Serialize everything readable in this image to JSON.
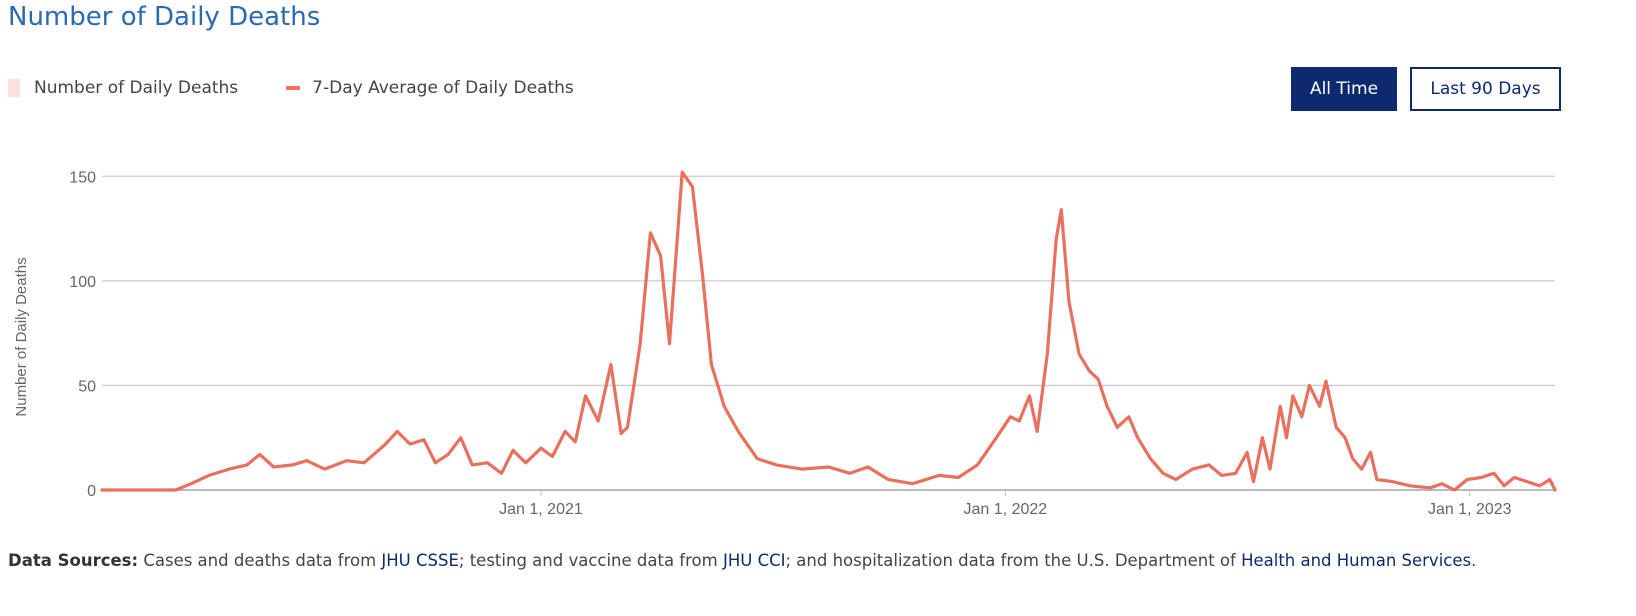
{
  "header": {
    "title": "Number of Daily Deaths"
  },
  "legend": {
    "daily_label": "Number of Daily Deaths",
    "average_label": "7-Day Average of Daily Deaths"
  },
  "buttons": {
    "all_time": "All Time",
    "last_90": "Last 90 Days"
  },
  "footer": {
    "label": "Data Sources:",
    "text1": " Cases and deaths data from ",
    "link1": "JHU CSSE",
    "text2": "; testing and vaccine data from ",
    "link2": "JHU CCI",
    "text3": "; and hospitalization data from the U.S. Department of ",
    "link3": "Health and Human Services",
    "text4": "."
  },
  "colors": {
    "bar": "#fbe0de",
    "line": "#e8705d",
    "accent": "#0d2a6e",
    "title": "#2a6ab5"
  },
  "chart_data": {
    "type": "line",
    "title": "Number of Daily Deaths",
    "ylabel": "Number of Daily Deaths",
    "xlabel": "",
    "x_range": [
      "2020-01-22",
      "2023-03-09"
    ],
    "ylim": [
      0,
      175
    ],
    "yticks": [
      0,
      50,
      100,
      150
    ],
    "xticks": [
      {
        "date": "2021-01-01",
        "label": "Jan 1, 2021"
      },
      {
        "date": "2022-01-01",
        "label": "Jan 1, 2022"
      },
      {
        "date": "2023-01-01",
        "label": "Jan 1, 2023"
      }
    ],
    "series": [
      {
        "name": "7-Day Average of Daily Deaths",
        "style": "line",
        "points": [
          [
            "2020-01-22",
            0
          ],
          [
            "2020-03-20",
            0
          ],
          [
            "2020-04-01",
            3
          ],
          [
            "2020-04-15",
            7
          ],
          [
            "2020-05-01",
            10
          ],
          [
            "2020-05-15",
            12
          ],
          [
            "2020-05-25",
            17
          ],
          [
            "2020-06-05",
            11
          ],
          [
            "2020-06-20",
            12
          ],
          [
            "2020-07-01",
            14
          ],
          [
            "2020-07-15",
            10
          ],
          [
            "2020-08-01",
            14
          ],
          [
            "2020-08-15",
            13
          ],
          [
            "2020-09-01",
            22
          ],
          [
            "2020-09-10",
            28
          ],
          [
            "2020-09-20",
            22
          ],
          [
            "2020-10-01",
            24
          ],
          [
            "2020-10-10",
            13
          ],
          [
            "2020-10-20",
            17
          ],
          [
            "2020-10-30",
            25
          ],
          [
            "2020-11-08",
            12
          ],
          [
            "2020-11-20",
            13
          ],
          [
            "2020-12-01",
            8
          ],
          [
            "2020-12-10",
            19
          ],
          [
            "2020-12-20",
            13
          ],
          [
            "2021-01-01",
            20
          ],
          [
            "2021-01-10",
            16
          ],
          [
            "2021-01-20",
            28
          ],
          [
            "2021-01-28",
            23
          ],
          [
            "2021-02-05",
            45
          ],
          [
            "2021-02-15",
            33
          ],
          [
            "2021-02-25",
            60
          ],
          [
            "2021-03-05",
            27
          ],
          [
            "2021-03-10",
            30
          ],
          [
            "2021-03-20",
            70
          ],
          [
            "2021-03-28",
            123
          ],
          [
            "2021-04-05",
            112
          ],
          [
            "2021-04-12",
            70
          ],
          [
            "2021-04-22",
            152
          ],
          [
            "2021-04-30",
            145
          ],
          [
            "2021-05-08",
            103
          ],
          [
            "2021-05-15",
            60
          ],
          [
            "2021-05-25",
            40
          ],
          [
            "2021-06-05",
            28
          ],
          [
            "2021-06-20",
            15
          ],
          [
            "2021-07-05",
            12
          ],
          [
            "2021-07-25",
            10
          ],
          [
            "2021-08-15",
            11
          ],
          [
            "2021-09-01",
            8
          ],
          [
            "2021-09-15",
            11
          ],
          [
            "2021-10-01",
            5
          ],
          [
            "2021-10-20",
            3
          ],
          [
            "2021-11-10",
            7
          ],
          [
            "2021-11-25",
            6
          ],
          [
            "2021-12-10",
            12
          ],
          [
            "2021-12-25",
            25
          ],
          [
            "2022-01-05",
            35
          ],
          [
            "2022-01-12",
            33
          ],
          [
            "2022-01-20",
            45
          ],
          [
            "2022-01-26",
            28
          ],
          [
            "2022-02-03",
            65
          ],
          [
            "2022-02-10",
            120
          ],
          [
            "2022-02-14",
            134
          ],
          [
            "2022-02-20",
            90
          ],
          [
            "2022-02-28",
            65
          ],
          [
            "2022-03-08",
            57
          ],
          [
            "2022-03-15",
            53
          ],
          [
            "2022-03-22",
            40
          ],
          [
            "2022-03-30",
            30
          ],
          [
            "2022-04-08",
            35
          ],
          [
            "2022-04-15",
            25
          ],
          [
            "2022-04-25",
            15
          ],
          [
            "2022-05-05",
            8
          ],
          [
            "2022-05-15",
            5
          ],
          [
            "2022-05-28",
            10
          ],
          [
            "2022-06-10",
            12
          ],
          [
            "2022-06-20",
            7
          ],
          [
            "2022-07-01",
            8
          ],
          [
            "2022-07-10",
            18
          ],
          [
            "2022-07-15",
            4
          ],
          [
            "2022-07-22",
            25
          ],
          [
            "2022-07-28",
            10
          ],
          [
            "2022-08-05",
            40
          ],
          [
            "2022-08-10",
            25
          ],
          [
            "2022-08-15",
            45
          ],
          [
            "2022-08-22",
            35
          ],
          [
            "2022-08-28",
            50
          ],
          [
            "2022-09-05",
            40
          ],
          [
            "2022-09-10",
            52
          ],
          [
            "2022-09-18",
            30
          ],
          [
            "2022-09-25",
            25
          ],
          [
            "2022-10-01",
            15
          ],
          [
            "2022-10-08",
            10
          ],
          [
            "2022-10-15",
            18
          ],
          [
            "2022-10-20",
            5
          ],
          [
            "2022-11-01",
            4
          ],
          [
            "2022-11-15",
            2
          ],
          [
            "2022-12-01",
            1
          ],
          [
            "2022-12-10",
            3
          ],
          [
            "2022-12-20",
            0
          ],
          [
            "2022-12-30",
            5
          ],
          [
            "2023-01-10",
            6
          ],
          [
            "2023-01-20",
            8
          ],
          [
            "2023-01-28",
            2
          ],
          [
            "2023-02-05",
            6
          ],
          [
            "2023-02-15",
            4
          ],
          [
            "2023-02-25",
            2
          ],
          [
            "2023-03-05",
            5
          ],
          [
            "2023-03-09",
            0
          ]
        ]
      }
    ]
  }
}
